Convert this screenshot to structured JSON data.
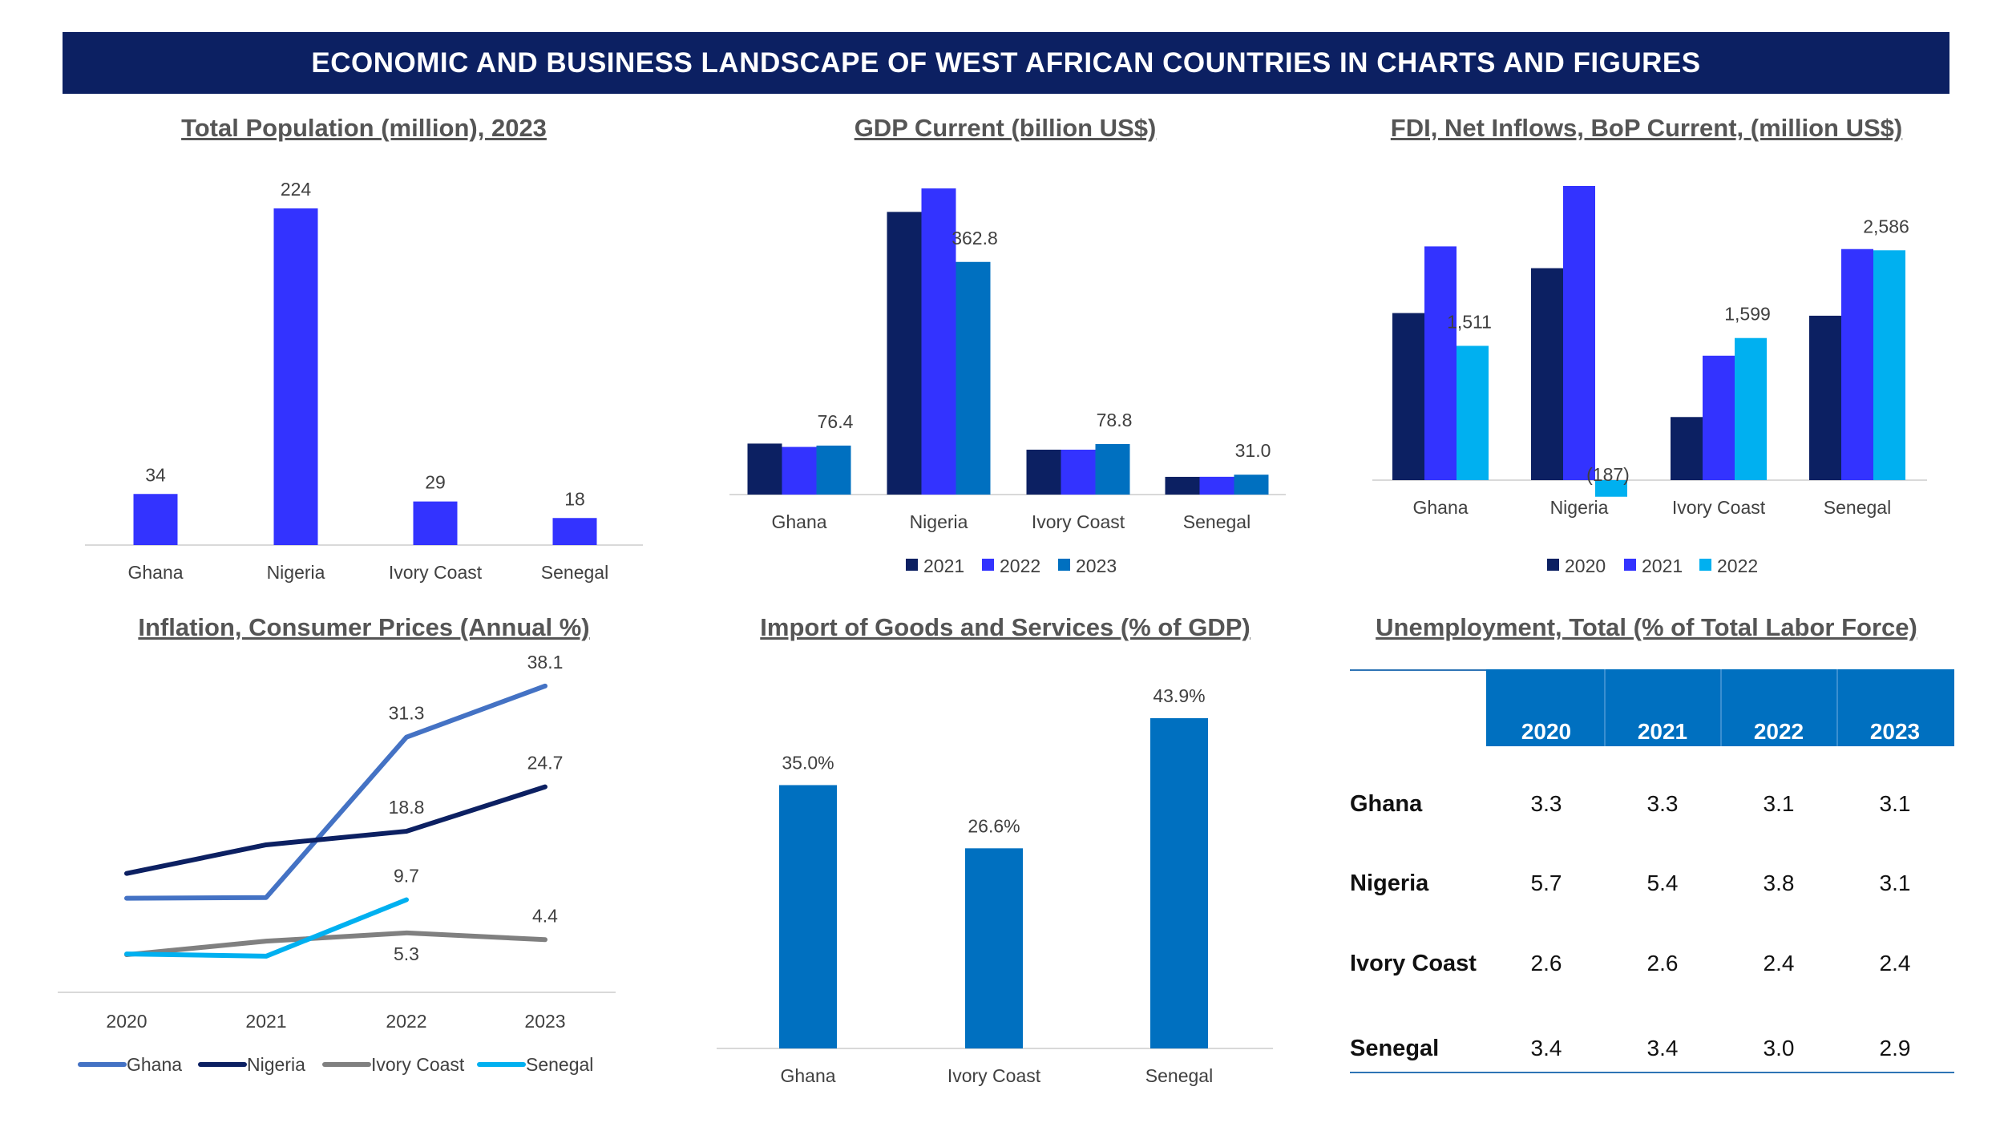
{
  "banner": {
    "title": "ECONOMIC AND BUSINESS LANDSCAPE OF WEST AFRICAN COUNTRIES IN CHARTS AND FIGURES"
  },
  "colors": {
    "banner_bg": "#0c2062",
    "navy": "#0c2062",
    "bright_blue": "#3333ff",
    "mid_blue": "#0070c0",
    "cyan": "#00b0f0",
    "ghana_line": "#4472c4",
    "gray": "#808080",
    "title_gray": "#555555"
  },
  "titles": {
    "population": "Total Population (million), 2023",
    "gdp": "GDP Current (billion US$)",
    "fdi": "FDI, Net Inflows, BoP Current, (million US$)",
    "inflation": "Inflation, Consumer Prices (Annual %)",
    "imports": "Import of Goods and Services (% of GDP)",
    "unemployment": "Unemployment, Total (% of Total Labor Force)"
  },
  "chart_data": [
    {
      "id": "population",
      "type": "bar",
      "title": "Total Population (million), 2023",
      "categories": [
        "Ghana",
        "Nigeria",
        "Ivory Coast",
        "Senegal"
      ],
      "values": [
        34,
        224,
        29,
        18
      ],
      "data_labels": [
        "34",
        "224",
        "29",
        "18"
      ],
      "ylim": [
        0,
        224
      ]
    },
    {
      "id": "gdp",
      "type": "bar",
      "title": "GDP Current (billion US$)",
      "categories": [
        "Ghana",
        "Nigeria",
        "Ivory Coast",
        "Senegal"
      ],
      "series": [
        {
          "name": "2021",
          "values": [
            79.5,
            440.8,
            70.0,
            27.6
          ]
        },
        {
          "name": "2022",
          "values": [
            74.3,
            477.4,
            70.0,
            27.7
          ]
        },
        {
          "name": "2023",
          "values": [
            76.4,
            362.8,
            78.8,
            31.0
          ],
          "labels": [
            "76.4",
            "362.8",
            "78.8",
            "31.0"
          ]
        }
      ],
      "ylim": [
        0,
        480
      ],
      "legend": "bottom"
    },
    {
      "id": "fdi",
      "type": "bar",
      "title": "FDI, Net Inflows, BoP Current, (million US$)",
      "categories": [
        "Ghana",
        "Nigeria",
        "Ivory Coast",
        "Senegal"
      ],
      "series": [
        {
          "name": "2020",
          "values": [
            1880,
            2385,
            710,
            1850
          ]
        },
        {
          "name": "2021",
          "values": [
            2630,
            3310,
            1400,
            2600
          ]
        },
        {
          "name": "2022",
          "values": [
            1511,
            -187,
            1599,
            2586
          ],
          "labels": [
            "1,511",
            "(187)",
            "1,599",
            "2,586"
          ]
        }
      ],
      "ylim": [
        -300,
        3350
      ],
      "legend": "bottom"
    },
    {
      "id": "inflation",
      "type": "line",
      "title": "Inflation, Consumer Prices (Annual %)",
      "x": [
        "2020",
        "2021",
        "2022",
        "2023"
      ],
      "series": [
        {
          "name": "Ghana",
          "values": [
            9.9,
            10.0,
            31.3,
            38.1
          ]
        },
        {
          "name": "Nigeria",
          "values": [
            13.2,
            17.0,
            18.8,
            24.7
          ]
        },
        {
          "name": "Ivory Coast",
          "values": [
            2.4,
            4.2,
            5.3,
            4.4
          ]
        },
        {
          "name": "Senegal",
          "values": [
            2.5,
            2.2,
            9.7,
            null
          ]
        }
      ],
      "data_labels": [
        {
          "text": "38.1",
          "series": "Ghana",
          "x": "2023"
        },
        {
          "text": "31.3",
          "series": "Ghana",
          "x": "2022"
        },
        {
          "text": "24.7",
          "series": "Nigeria",
          "x": "2023"
        },
        {
          "text": "18.8",
          "series": "Nigeria",
          "x": "2022"
        },
        {
          "text": "9.7",
          "series": "Senegal",
          "x": "2022"
        },
        {
          "text": "4.4",
          "series": "Ivory Coast",
          "x": "2023"
        },
        {
          "text": "5.3",
          "series": "Ivory Coast",
          "x": "2022"
        }
      ],
      "ylim": [
        -2.6,
        40
      ],
      "legend": "bottom"
    },
    {
      "id": "imports",
      "type": "bar",
      "title": "Import of Goods and Services (% of GDP)",
      "categories": [
        "Ghana",
        "Ivory Coast",
        "Senegal"
      ],
      "values": [
        35.0,
        26.6,
        43.9
      ],
      "data_labels": [
        "35.0%",
        "26.6%",
        "43.9%"
      ],
      "ylim": [
        0,
        44
      ]
    },
    {
      "id": "unemployment",
      "type": "table",
      "title": "Unemployment, Total (% of Total Labor Force)",
      "columns": [
        "2020",
        "2021",
        "2022",
        "2023"
      ],
      "rows": [
        {
          "label": "Ghana",
          "values": [
            "3.3",
            "3.3",
            "3.1",
            "3.1"
          ]
        },
        {
          "label": "Nigeria",
          "values": [
            "5.7",
            "5.4",
            "3.8",
            "3.1"
          ]
        },
        {
          "label": "Ivory Coast",
          "values": [
            "2.6",
            "2.6",
            "2.4",
            "2.4"
          ]
        },
        {
          "label": "Senegal",
          "values": [
            "3.4",
            "3.4",
            "3.0",
            "2.9"
          ]
        }
      ]
    }
  ]
}
